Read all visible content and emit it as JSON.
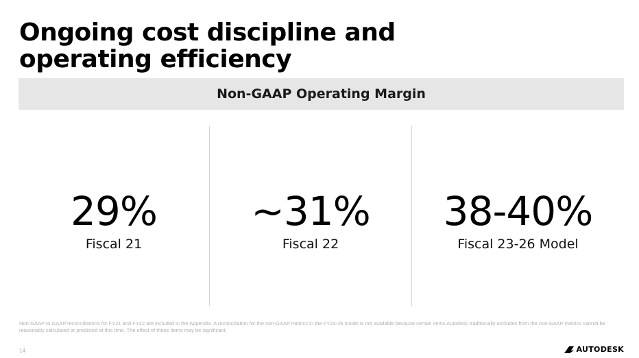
{
  "slide": {
    "title_line1": "Ongoing cost discipline and",
    "title_line2": "operating efficiency",
    "band_label": "Non-GAAP Operating Margin",
    "page_number": "14"
  },
  "metrics": [
    {
      "value": "29%",
      "label": "Fiscal 21"
    },
    {
      "value": "~31%",
      "label": "Fiscal 22"
    },
    {
      "value": "38-40%",
      "label": "Fiscal 23-26 Model"
    }
  ],
  "footnote": "Non-GAAP to GAAP reconciliations for FY21 and FY22 are included in the Appendix. A reconciliation for the non-GAAP metrics in the FY23-26 model is not available because certain items Autodesk traditionally excludes from the non-GAAP metrics cannot be reasonably calculated or predicted at this time. The effect of these items may be significant.",
  "brand": {
    "name": "AUTODESK",
    "logo_icon": "autodesk-logo-icon",
    "color": "#000000"
  },
  "colors": {
    "band": "#e6e6e6",
    "divider": "#d4d4d4",
    "footnote": "#b0b0b0"
  }
}
